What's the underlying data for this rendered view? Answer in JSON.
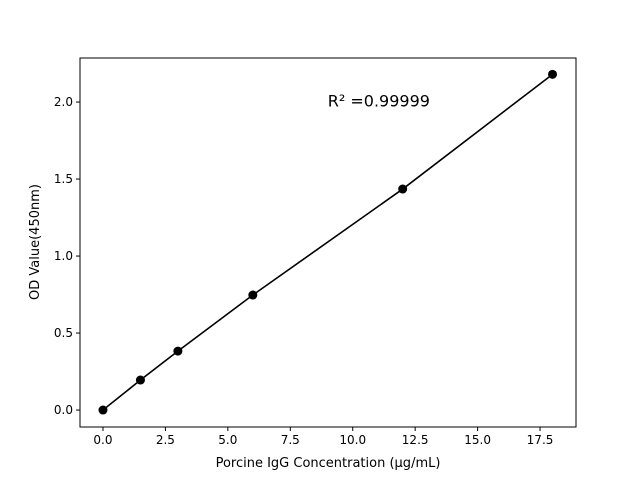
{
  "chart_data": {
    "type": "scatter",
    "title": "",
    "xlabel": "Porcine IgG Concentration (μg/mL)",
    "ylabel": "OD Value(450nm)",
    "xlim": [
      -0.92,
      18.94
    ],
    "ylim": [
      -0.11,
      2.286
    ],
    "xticks": [
      0,
      2.5,
      5,
      7.5,
      10,
      12.5,
      15,
      17.5
    ],
    "xtick_labels": [
      "0.0",
      "2.5",
      "5.0",
      "7.5",
      "10.0",
      "12.5",
      "15.0",
      "17.5"
    ],
    "yticks": [
      0,
      0.5,
      1,
      1.5,
      2
    ],
    "ytick_labels": [
      "0.0",
      "0.5",
      "1.0",
      "1.5",
      "2.0"
    ],
    "grid": false,
    "series": [
      {
        "x": [
          0,
          1.5,
          3,
          6,
          12,
          18
        ],
        "y": [
          0.0,
          0.195,
          0.383,
          0.747,
          1.435,
          2.18
        ],
        "color": "#000000",
        "marker": "circle",
        "line": true
      }
    ],
    "annotation": {
      "text": "R² =0.99999",
      "x": 9,
      "y": 1.97
    }
  }
}
